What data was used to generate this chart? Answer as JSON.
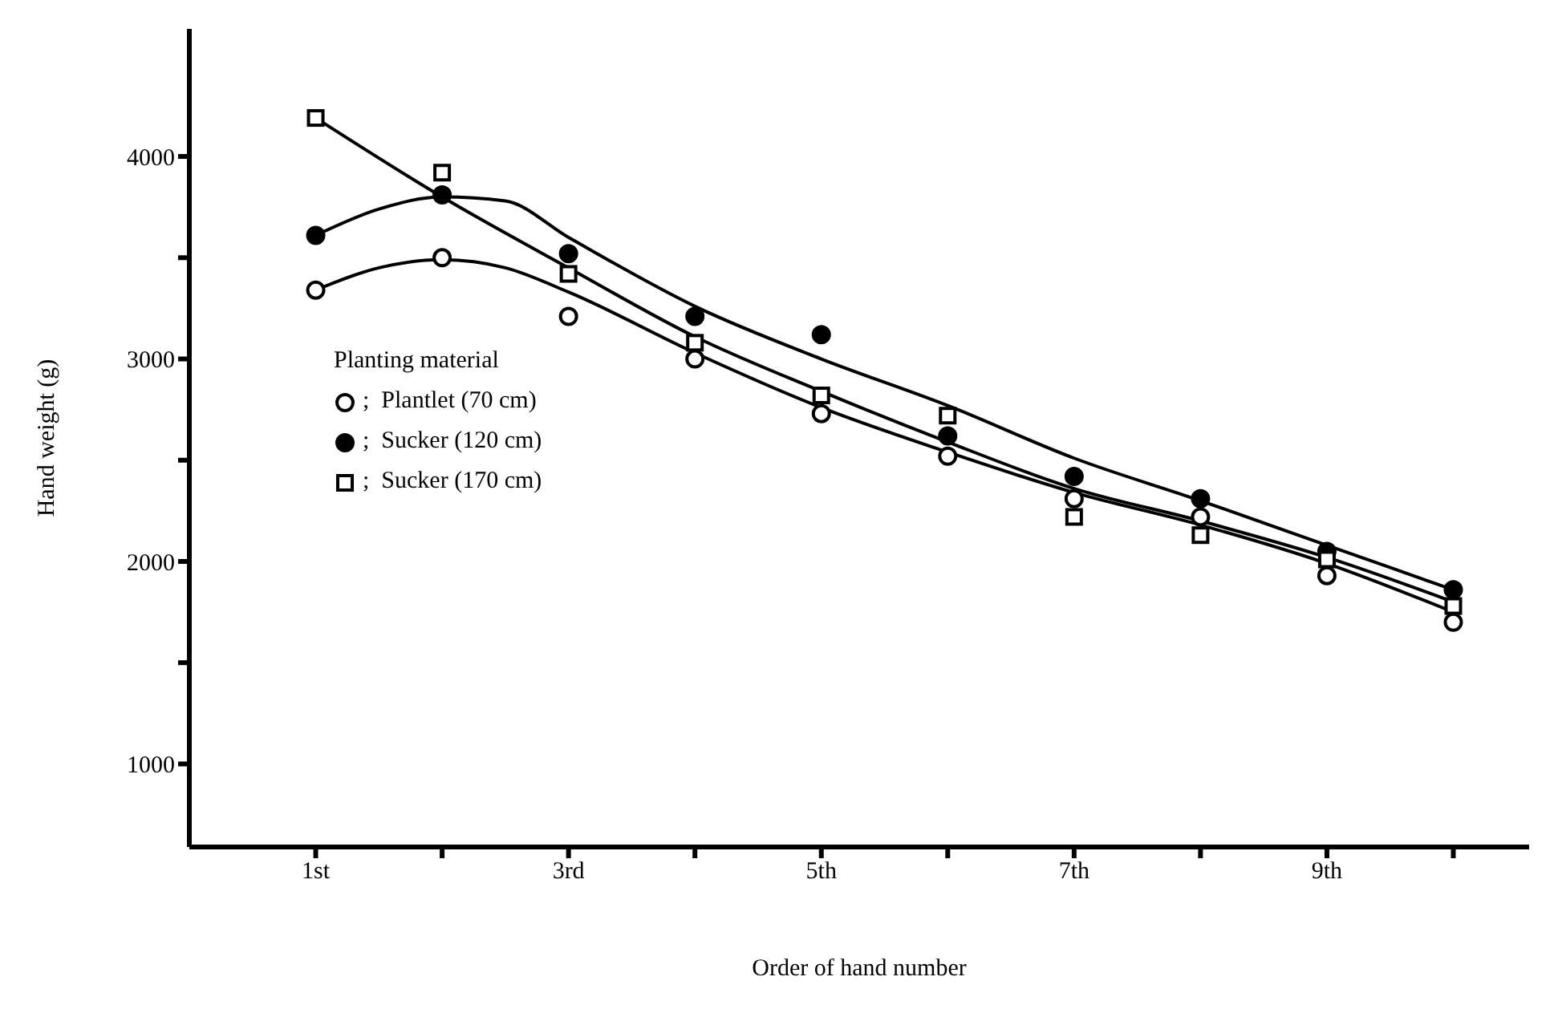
{
  "chart_data": {
    "type": "scatter",
    "xlabel": "Order of hand number",
    "ylabel": "Hand weight (g)",
    "legend_title": "Planting material",
    "legend": "left",
    "grid": false,
    "xlim": [
      0,
      10.6
    ],
    "xticks": [
      {
        "value": 1,
        "label": "1st"
      },
      {
        "value": 2,
        "label": null
      },
      {
        "value": 3,
        "label": "3rd"
      },
      {
        "value": 4,
        "label": null
      },
      {
        "value": 5,
        "label": "5th"
      },
      {
        "value": 6,
        "label": null
      },
      {
        "value": 7,
        "label": "7th"
      },
      {
        "value": 8,
        "label": null
      },
      {
        "value": 9,
        "label": "9th"
      },
      {
        "value": 10,
        "label": null
      }
    ],
    "ylim": [
      590,
      4630
    ],
    "yticks": [
      1000,
      {
        "value": 1500,
        "label": null
      },
      2000,
      {
        "value": 2500,
        "label": null
      },
      3000,
      {
        "value": 3500,
        "label": null
      },
      4000
    ],
    "series": [
      {
        "name": ";  Plantlet (70 cm)",
        "color": "#ffffff",
        "marker": "circle",
        "x": [
          1,
          2,
          3,
          4,
          5,
          6,
          7,
          8,
          9,
          10
        ],
        "values": [
          3340,
          3500,
          3210,
          3000,
          2730,
          2520,
          2310,
          2220,
          1930,
          1700
        ]
      },
      {
        "name": ";  Sucker (120 cm)",
        "color": "#000000",
        "marker": "circle",
        "x": [
          1,
          2,
          3,
          4,
          5,
          6,
          7,
          8,
          9,
          10
        ],
        "values": [
          3610,
          3810,
          3520,
          3210,
          3120,
          2620,
          2420,
          2310,
          2050,
          1860
        ]
      },
      {
        "name": ";  Sucker (170 cm)",
        "color": "#ffffff",
        "marker": "square",
        "x": [
          1,
          2,
          3,
          4,
          5,
          6,
          7,
          8,
          9,
          10
        ],
        "values": [
          4190,
          3920,
          3420,
          3080,
          2820,
          2720,
          2220,
          2130,
          2010,
          1780
        ]
      },
      {
        "type": "line",
        "color": "#000000",
        "marker": "none",
        "x": [
          1,
          1.5,
          2,
          2.5,
          3,
          4,
          5,
          6,
          7,
          8,
          9,
          10
        ],
        "values": [
          3340,
          3450,
          3490,
          3450,
          3330,
          3030,
          2760,
          2540,
          2340,
          2180,
          1990,
          1750
        ]
      },
      {
        "type": "line",
        "color": "#000000",
        "marker": "none",
        "x": [
          1,
          1.5,
          2,
          2.5,
          3,
          4,
          5,
          6,
          7,
          8,
          9,
          10
        ],
        "values": [
          3610,
          3740,
          3800,
          3780,
          3600,
          3260,
          3000,
          2770,
          2510,
          2300,
          2080,
          1860
        ]
      },
      {
        "type": "line",
        "color": "#000000",
        "marker": "none",
        "x": [
          1,
          2,
          3,
          4,
          5,
          6,
          7,
          8,
          9,
          10
        ],
        "values": [
          4190,
          3800,
          3450,
          3110,
          2840,
          2590,
          2360,
          2200,
          2020,
          1800
        ]
      }
    ]
  }
}
